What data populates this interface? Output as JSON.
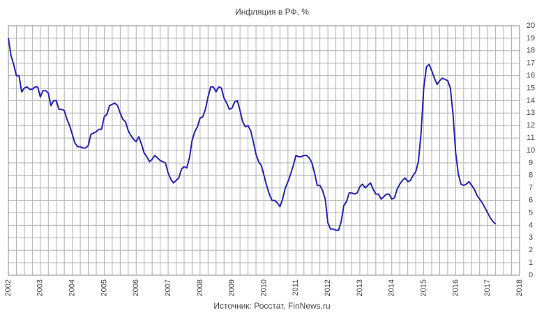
{
  "chart_data": {
    "type": "line",
    "title": "Инфляция в РФ, %",
    "source": "Источник: Росстат, FinNews.ru",
    "x": [
      2002,
      2002.083,
      2002.167,
      2002.25,
      2002.333,
      2002.417,
      2002.5,
      2002.583,
      2002.667,
      2002.75,
      2002.833,
      2002.917,
      2003,
      2003.083,
      2003.167,
      2003.25,
      2003.333,
      2003.417,
      2003.5,
      2003.583,
      2003.667,
      2003.75,
      2003.833,
      2003.917,
      2004,
      2004.083,
      2004.167,
      2004.25,
      2004.333,
      2004.417,
      2004.5,
      2004.583,
      2004.667,
      2004.75,
      2004.833,
      2004.917,
      2005,
      2005.083,
      2005.167,
      2005.25,
      2005.333,
      2005.417,
      2005.5,
      2005.583,
      2005.667,
      2005.75,
      2005.833,
      2005.917,
      2006,
      2006.083,
      2006.167,
      2006.25,
      2006.333,
      2006.417,
      2006.5,
      2006.583,
      2006.667,
      2006.75,
      2006.833,
      2006.917,
      2007,
      2007.083,
      2007.167,
      2007.25,
      2007.333,
      2007.417,
      2007.5,
      2007.583,
      2007.667,
      2007.75,
      2007.833,
      2007.917,
      2008,
      2008.083,
      2008.167,
      2008.25,
      2008.333,
      2008.417,
      2008.5,
      2008.583,
      2008.667,
      2008.75,
      2008.833,
      2008.917,
      2009,
      2009.083,
      2009.167,
      2009.25,
      2009.333,
      2009.417,
      2009.5,
      2009.583,
      2009.667,
      2009.75,
      2009.833,
      2009.917,
      2010,
      2010.083,
      2010.167,
      2010.25,
      2010.333,
      2010.417,
      2010.5,
      2010.583,
      2010.667,
      2010.75,
      2010.833,
      2010.917,
      2011,
      2011.083,
      2011.167,
      2011.25,
      2011.333,
      2011.417,
      2011.5,
      2011.583,
      2011.667,
      2011.75,
      2011.833,
      2011.917,
      2012,
      2012.083,
      2012.167,
      2012.25,
      2012.333,
      2012.417,
      2012.5,
      2012.583,
      2012.667,
      2012.75,
      2012.833,
      2012.917,
      2013,
      2013.083,
      2013.167,
      2013.25,
      2013.333,
      2013.417,
      2013.5,
      2013.583,
      2013.667,
      2013.75,
      2013.833,
      2013.917,
      2014,
      2014.083,
      2014.167,
      2014.25,
      2014.333,
      2014.417,
      2014.5,
      2014.583,
      2014.667,
      2014.75,
      2014.833,
      2014.917,
      2015,
      2015.083,
      2015.167,
      2015.25,
      2015.333,
      2015.417,
      2015.5,
      2015.583,
      2015.667,
      2015.75,
      2015.833,
      2015.917,
      2016,
      2016.083,
      2016.167,
      2016.25,
      2016.333,
      2016.417,
      2016.5,
      2016.583,
      2016.667,
      2016.75,
      2016.833,
      2016.917,
      2017,
      2017.083,
      2017.167,
      2017.25
    ],
    "series": [
      {
        "color": "#2323b8",
        "values": [
          19.0,
          17.6,
          16.9,
          16.0,
          16.0,
          14.7,
          15.0,
          15.1,
          14.9,
          14.9,
          15.1,
          15.1,
          14.3,
          14.8,
          14.8,
          14.6,
          13.6,
          14.0,
          14.0,
          13.3,
          13.3,
          13.2,
          12.5,
          12.0,
          11.3,
          10.6,
          10.3,
          10.3,
          10.2,
          10.2,
          10.4,
          11.3,
          11.4,
          11.5,
          11.7,
          11.7,
          12.7,
          12.9,
          13.6,
          13.7,
          13.8,
          13.6,
          13.0,
          12.5,
          12.3,
          11.6,
          11.2,
          10.9,
          10.7,
          11.1,
          10.5,
          9.8,
          9.5,
          9.1,
          9.3,
          9.6,
          9.4,
          9.2,
          9.1,
          9.0,
          8.2,
          7.7,
          7.4,
          7.6,
          7.8,
          8.5,
          8.7,
          8.6,
          9.4,
          10.8,
          11.5,
          11.9,
          12.6,
          12.7,
          13.3,
          14.3,
          15.1,
          15.1,
          14.7,
          15.1,
          15.0,
          14.2,
          13.8,
          13.3,
          13.4,
          13.9,
          14.0,
          13.2,
          12.3,
          11.9,
          12.0,
          11.6,
          10.7,
          9.7,
          9.1,
          8.8,
          8.0,
          7.2,
          6.5,
          6.0,
          6.0,
          5.8,
          5.5,
          6.1,
          7.0,
          7.5,
          8.1,
          8.8,
          9.6,
          9.5,
          9.5,
          9.6,
          9.6,
          9.4,
          9.0,
          8.2,
          7.2,
          7.2,
          6.8,
          6.1,
          4.2,
          3.7,
          3.7,
          3.6,
          3.6,
          4.3,
          5.6,
          5.9,
          6.6,
          6.6,
          6.5,
          6.6,
          7.1,
          7.3,
          7.0,
          7.2,
          7.4,
          6.9,
          6.5,
          6.5,
          6.1,
          6.3,
          6.5,
          6.5,
          6.1,
          6.2,
          6.9,
          7.3,
          7.6,
          7.8,
          7.5,
          7.6,
          8.0,
          8.3,
          9.1,
          11.4,
          15.0,
          16.7,
          16.9,
          16.4,
          15.8,
          15.3,
          15.6,
          15.8,
          15.7,
          15.6,
          15.0,
          12.9,
          9.8,
          8.1,
          7.3,
          7.2,
          7.3,
          7.5,
          7.2,
          6.9,
          6.4,
          6.1,
          5.8,
          5.4,
          5.0,
          4.6,
          4.3,
          4.1
        ]
      }
    ],
    "xlim": [
      2002,
      2018
    ],
    "xticks": [
      2002,
      2003,
      2004,
      2005,
      2006,
      2007,
      2008,
      2009,
      2010,
      2011,
      2012,
      2013,
      2014,
      2015,
      2016,
      2017,
      2018
    ],
    "xminorticks": [
      2002.25,
      2002.5,
      2002.75,
      2003.25,
      2003.5,
      2003.75,
      2004.25,
      2004.5,
      2004.75,
      2005.25,
      2005.5,
      2005.75,
      2006.25,
      2006.5,
      2006.75,
      2007.25,
      2007.5,
      2007.75,
      2008.25,
      2008.5,
      2008.75,
      2009.25,
      2009.5,
      2009.75,
      2010.25,
      2010.5,
      2010.75,
      2011.25,
      2011.5,
      2011.75,
      2012.25,
      2012.5,
      2012.75,
      2013.25,
      2013.5,
      2013.75,
      2014.25,
      2014.5,
      2014.75,
      2015.25,
      2015.5,
      2015.75,
      2016.25,
      2016.5,
      2016.75,
      2017.25,
      2017.5,
      2017.75
    ],
    "ylim": [
      0,
      20
    ],
    "yticks": [
      0,
      1,
      2,
      3,
      4,
      5,
      6,
      7,
      8,
      9,
      10,
      11,
      12,
      13,
      14,
      15,
      16,
      17,
      18,
      19,
      20
    ],
    "grid": true
  }
}
